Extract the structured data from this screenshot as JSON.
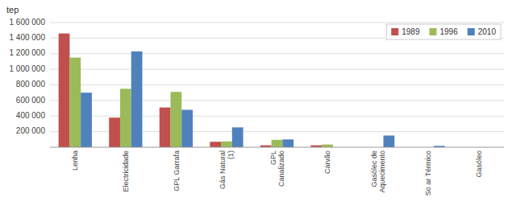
{
  "chart_data": {
    "type": "bar",
    "ylabel": "tep",
    "categories": [
      "Lenha",
      "Electricidade",
      "GPL Garrafa",
      "Gás Natural\n(1)",
      "GPL\nCanalizado",
      "Carvão",
      "Gasólec de\nAquecimento",
      "So ar Térmico",
      "Gasóleo"
    ],
    "series": [
      {
        "name": "1989",
        "color": "#C0504D",
        "values": [
          1460000,
          380000,
          510000,
          70000,
          25000,
          25000,
          0,
          0,
          0
        ]
      },
      {
        "name": "1996",
        "color": "#9BBB59",
        "values": [
          1150000,
          750000,
          710000,
          75000,
          95000,
          35000,
          0,
          0,
          0
        ]
      },
      {
        "name": "2010",
        "color": "#4F81BD",
        "values": [
          700000,
          1230000,
          480000,
          255000,
          100000,
          0,
          150000,
          18000,
          0
        ]
      }
    ],
    "ylim": [
      0,
      1600000
    ],
    "yticks": [
      {
        "value": 200000,
        "label": "200 000"
      },
      {
        "value": 400000,
        "label": "400 000"
      },
      {
        "value": 600000,
        "label": "600 000"
      },
      {
        "value": 800000,
        "label": "800 000"
      },
      {
        "value": 1000000,
        "label": "1 000 000"
      },
      {
        "value": 1200000,
        "label": "1 200 000"
      },
      {
        "value": 1400000,
        "label": "1 400 000"
      },
      {
        "value": 1600000,
        "label": "1 600 000"
      }
    ],
    "grid": true,
    "legend": "upper right"
  }
}
